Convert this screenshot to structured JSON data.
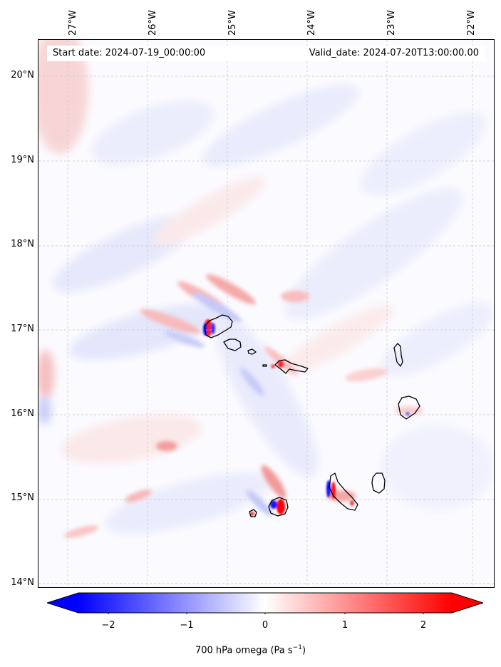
{
  "map": {
    "start_date": "Start date: 2024-07-19_00:00:00",
    "valid_date": "Valid_date: 2024-07-20T13:00:00.00",
    "lon_labels": [
      "27°W",
      "26°W",
      "25°W",
      "24°W",
      "23°W",
      "22°W"
    ],
    "lat_labels": [
      "20°N",
      "19°N",
      "18°N",
      "17°N",
      "16°N",
      "15°N",
      "14°N"
    ],
    "lon_range": [
      -27.35,
      -21.95
    ],
    "lat_range": [
      13.95,
      20.45
    ]
  },
  "colorbar": {
    "ticks": [
      "−2",
      "−1",
      "0",
      "1",
      "2"
    ],
    "tick_values": [
      -2,
      -1,
      0,
      1,
      2
    ],
    "range": [
      -2.5,
      2.5
    ],
    "extend": "both",
    "colormap": "bwr",
    "label_main": "700 hPa omega (Pa s",
    "label_sup": "−1",
    "label_end": ")"
  }
}
